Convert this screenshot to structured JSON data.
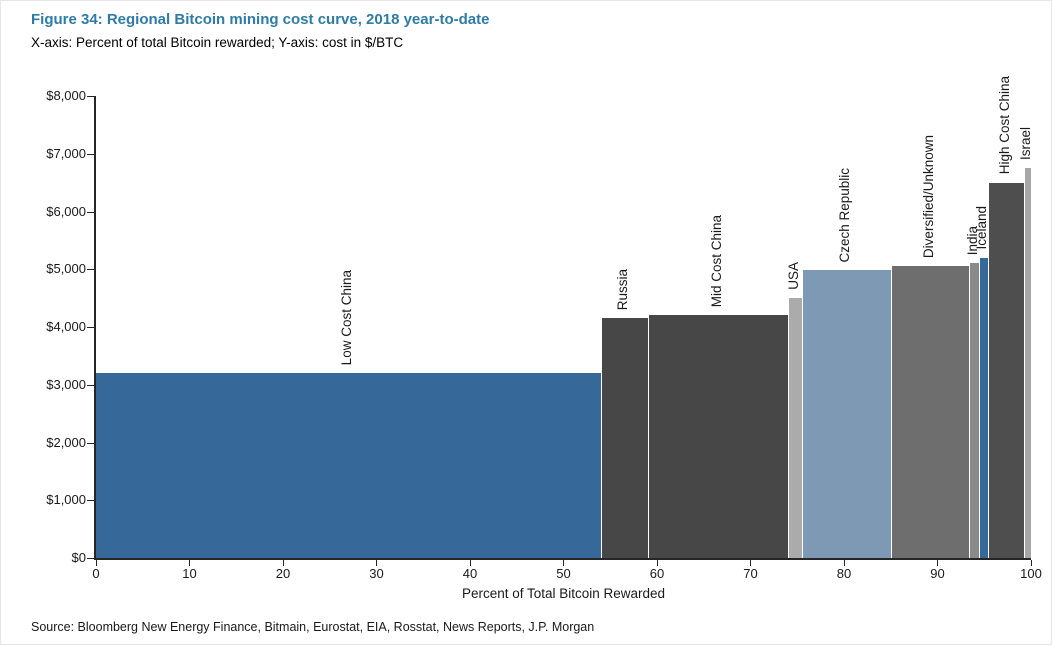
{
  "title": "Figure 34: Regional Bitcoin mining cost curve, 2018 year-to-date",
  "subtitle": "X-axis: Percent of total Bitcoin rewarded; Y-axis: cost in $/BTC",
  "source": "Source: Bloomberg New Energy Finance, Bitmain, Eurostat, EIA, Rosstat, News Reports, J.P. Morgan",
  "colors": {
    "title_accent": "#2e7ca6",
    "axis": "#262626",
    "low_cost_blue": "#36699a",
    "dark_gray": "#474747",
    "light_gray": "#ababab",
    "steel_blue_gray": "#7e99b3",
    "mid_gray": "#6e6e6e"
  },
  "chart_data": {
    "type": "bar",
    "variant": "cost-curve-step",
    "title": "Figure 34: Regional Bitcoin mining cost curve, 2018 year-to-date",
    "xlabel": "Percent of Total Bitcoin Rewarded",
    "ylabel": "cost in $/BTC",
    "xlim": [
      0,
      100
    ],
    "ylim": [
      0,
      8000
    ],
    "grid": false,
    "legend": false,
    "x_ticks": [
      0,
      10,
      20,
      30,
      40,
      50,
      60,
      70,
      80,
      90,
      100
    ],
    "y_ticks": [
      {
        "value": 0,
        "label": "$0"
      },
      {
        "value": 1000,
        "label": "$1,000"
      },
      {
        "value": 2000,
        "label": "$2,000"
      },
      {
        "value": 3000,
        "label": "$3,000"
      },
      {
        "value": 4000,
        "label": "$4,000"
      },
      {
        "value": 5000,
        "label": "$5,000"
      },
      {
        "value": 6000,
        "label": "$6,000"
      },
      {
        "value": 7000,
        "label": "$7,000"
      },
      {
        "value": 8000,
        "label": "$8,000"
      }
    ],
    "segments": [
      {
        "label": "Low Cost China",
        "x_start": 0,
        "x_end": 54,
        "cost_usd_per_btc": 3200,
        "color": "#36699a"
      },
      {
        "label": "Russia",
        "x_start": 54,
        "x_end": 59,
        "cost_usd_per_btc": 4150,
        "color": "#474747"
      },
      {
        "label": "Mid Cost China",
        "x_start": 59,
        "x_end": 74,
        "cost_usd_per_btc": 4200,
        "color": "#474747"
      },
      {
        "label": "USA",
        "x_start": 74,
        "x_end": 75.5,
        "cost_usd_per_btc": 4500,
        "color": "#ababab"
      },
      {
        "label": "Czech Republic",
        "x_start": 75.5,
        "x_end": 85,
        "cost_usd_per_btc": 4980,
        "color": "#7e99b3"
      },
      {
        "label": "Diversified/Unknown",
        "x_start": 85,
        "x_end": 93.4,
        "cost_usd_per_btc": 5060,
        "color": "#6e6e6e"
      },
      {
        "label": "India",
        "x_start": 93.4,
        "x_end": 94.4,
        "cost_usd_per_btc": 5100,
        "color": "#8a8a8a"
      },
      {
        "label": "Iceland",
        "x_start": 94.4,
        "x_end": 95.4,
        "cost_usd_per_btc": 5200,
        "color": "#36699a"
      },
      {
        "label": "High Cost China",
        "x_start": 95.4,
        "x_end": 99.2,
        "cost_usd_per_btc": 6500,
        "color": "#4e4e4e"
      },
      {
        "label": "Israel",
        "x_start": 99.2,
        "x_end": 100,
        "cost_usd_per_btc": 6750,
        "color": "#a6a6a6"
      }
    ]
  }
}
